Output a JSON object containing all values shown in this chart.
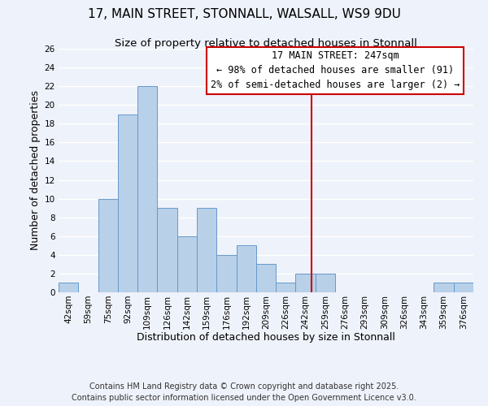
{
  "title": "17, MAIN STREET, STONNALL, WALSALL, WS9 9DU",
  "subtitle": "Size of property relative to detached houses in Stonnall",
  "xlabel": "Distribution of detached houses by size in Stonnall",
  "ylabel": "Number of detached properties",
  "bar_labels": [
    "42sqm",
    "59sqm",
    "75sqm",
    "92sqm",
    "109sqm",
    "126sqm",
    "142sqm",
    "159sqm",
    "176sqm",
    "192sqm",
    "209sqm",
    "226sqm",
    "242sqm",
    "259sqm",
    "276sqm",
    "293sqm",
    "309sqm",
    "326sqm",
    "343sqm",
    "359sqm",
    "376sqm"
  ],
  "bar_values": [
    1,
    0,
    10,
    19,
    22,
    9,
    6,
    9,
    4,
    5,
    3,
    1,
    2,
    2,
    0,
    0,
    0,
    0,
    0,
    1,
    1
  ],
  "bar_color": "#b8d0e8",
  "bar_edge_color": "#6699cc",
  "background_color": "#eef2fa",
  "grid_color": "#ffffff",
  "ylim": [
    0,
    26
  ],
  "yticks": [
    0,
    2,
    4,
    6,
    8,
    10,
    12,
    14,
    16,
    18,
    20,
    22,
    24,
    26
  ],
  "vline_color": "#cc0000",
  "annotation_title": "17 MAIN STREET: 247sqm",
  "annotation_line1": "← 98% of detached houses are smaller (91)",
  "annotation_line2": "2% of semi-detached houses are larger (2) →",
  "annotation_box_edge": "#cc0000",
  "footer_line1": "Contains HM Land Registry data © Crown copyright and database right 2025.",
  "footer_line2": "Contains public sector information licensed under the Open Government Licence v3.0.",
  "title_fontsize": 11,
  "subtitle_fontsize": 9.5,
  "axis_label_fontsize": 9,
  "tick_fontsize": 7.5,
  "annotation_fontsize": 8.5,
  "footer_fontsize": 7
}
